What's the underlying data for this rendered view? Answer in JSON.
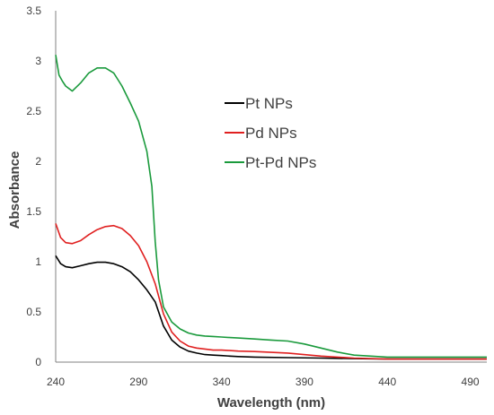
{
  "chart_data": {
    "type": "line",
    "title": "",
    "xlabel": "Wavelength (nm)",
    "ylabel": "Absorbance",
    "xlim": [
      240,
      500
    ],
    "ylim": [
      0,
      3.5
    ],
    "xticks": [
      240,
      290,
      340,
      390,
      440,
      490
    ],
    "yticks": [
      0,
      0.5,
      1,
      1.5,
      2,
      2.5,
      3,
      3.5
    ],
    "ytick_labels": [
      "0",
      "0.5",
      "1",
      "1.5",
      "2",
      "2.5",
      "3",
      "3.5"
    ],
    "grid": false,
    "legend": "center-right",
    "series": [
      {
        "name": "Pt NPs",
        "color": "#000000",
        "x": [
          240,
          243,
          246,
          250,
          255,
          260,
          265,
          270,
          275,
          280,
          285,
          290,
          295,
          300,
          305,
          310,
          315,
          320,
          325,
          330,
          335,
          340,
          345,
          350,
          360,
          380,
          400,
          420,
          440,
          460,
          480,
          500
        ],
        "y": [
          1.06,
          0.98,
          0.95,
          0.94,
          0.96,
          0.98,
          0.995,
          0.995,
          0.98,
          0.95,
          0.9,
          0.82,
          0.72,
          0.6,
          0.36,
          0.22,
          0.15,
          0.11,
          0.09,
          0.075,
          0.07,
          0.065,
          0.06,
          0.055,
          0.05,
          0.045,
          0.04,
          0.035,
          0.03,
          0.03,
          0.03,
          0.03
        ]
      },
      {
        "name": "Pd NPs",
        "color": "#e02020",
        "x": [
          240,
          243,
          246,
          250,
          255,
          260,
          265,
          270,
          275,
          280,
          285,
          290,
          295,
          300,
          305,
          310,
          315,
          320,
          325,
          330,
          335,
          340,
          345,
          350,
          360,
          380,
          400,
          420,
          440,
          460,
          480,
          500
        ],
        "y": [
          1.38,
          1.24,
          1.19,
          1.18,
          1.21,
          1.27,
          1.32,
          1.35,
          1.36,
          1.33,
          1.26,
          1.16,
          1.0,
          0.78,
          0.48,
          0.3,
          0.21,
          0.16,
          0.14,
          0.13,
          0.12,
          0.12,
          0.115,
          0.11,
          0.105,
          0.09,
          0.06,
          0.04,
          0.03,
          0.03,
          0.03,
          0.03
        ]
      },
      {
        "name": "Pt-Pd NPs",
        "color": "#1a9a3c",
        "x": [
          240,
          242,
          244,
          246,
          250,
          255,
          260,
          265,
          270,
          275,
          280,
          285,
          290,
          295,
          298,
          300,
          302,
          305,
          310,
          315,
          320,
          325,
          330,
          335,
          340,
          345,
          350,
          360,
          370,
          380,
          390,
          400,
          410,
          420,
          440,
          460,
          480,
          500
        ],
        "y": [
          3.06,
          2.86,
          2.8,
          2.75,
          2.7,
          2.78,
          2.88,
          2.93,
          2.93,
          2.88,
          2.75,
          2.58,
          2.4,
          2.1,
          1.75,
          1.2,
          0.82,
          0.55,
          0.4,
          0.33,
          0.29,
          0.27,
          0.26,
          0.255,
          0.25,
          0.245,
          0.24,
          0.23,
          0.22,
          0.21,
          0.18,
          0.14,
          0.1,
          0.07,
          0.05,
          0.05,
          0.05,
          0.05
        ]
      }
    ]
  }
}
